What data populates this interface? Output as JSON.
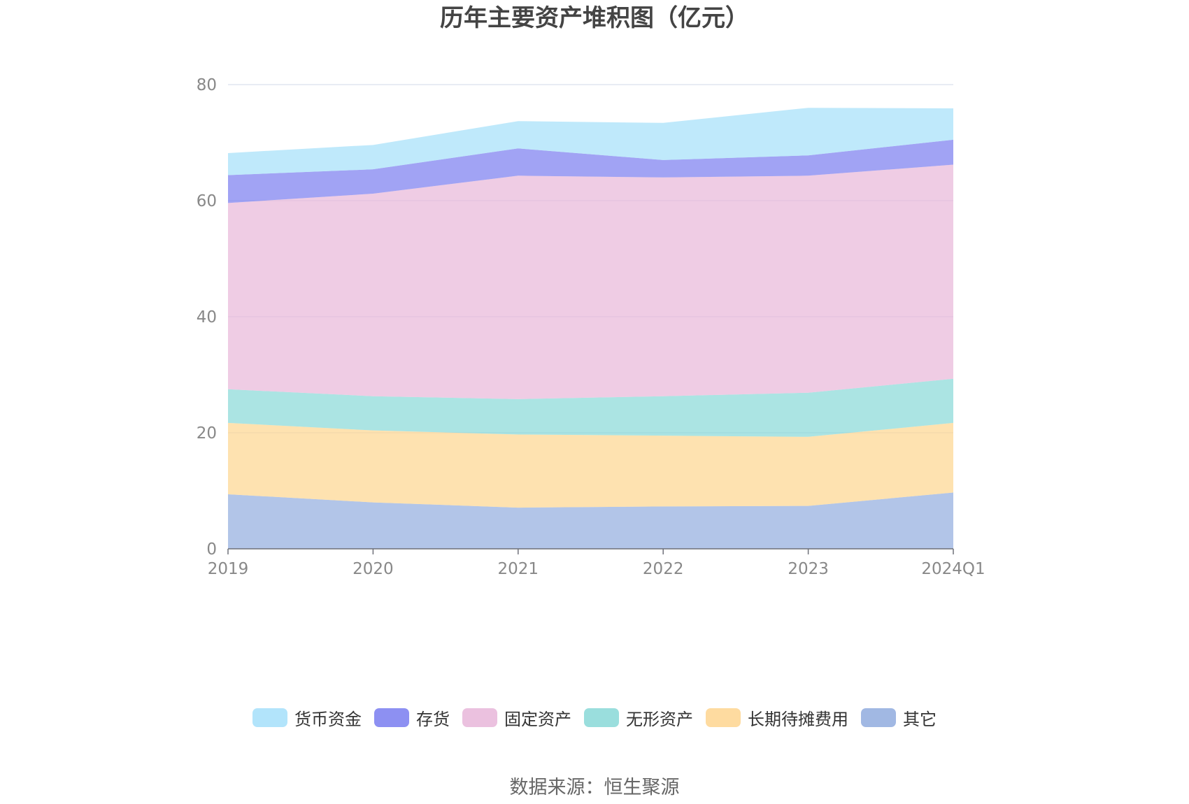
{
  "title": "历年主要资产堆积图（亿元）",
  "source": "数据来源：恒生聚源",
  "colors": {
    "axis": "#6e7079",
    "grid": "#e0e6f1",
    "tick_text": "#888888"
  },
  "chart_data": {
    "type": "area",
    "stacked": true,
    "title": "历年主要资产堆积图（亿元）",
    "xlabel": "",
    "ylabel": "",
    "categories": [
      "2019",
      "2020",
      "2021",
      "2022",
      "2023",
      "2024Q1"
    ],
    "ylim": [
      0,
      80
    ],
    "yticks": [
      0,
      20,
      40,
      60,
      80
    ],
    "grid": true,
    "legend_position": "bottom",
    "series": [
      {
        "name": "其它",
        "color": "#91acde",
        "values": [
          9.4,
          8.0,
          7.1,
          7.3,
          7.4,
          9.7
        ]
      },
      {
        "name": "长期待摊费用",
        "color": "#fed58f",
        "values": [
          12.3,
          12.4,
          12.6,
          12.2,
          11.9,
          12.0
        ]
      },
      {
        "name": "无形资产",
        "color": "#88d8d7",
        "values": [
          5.8,
          5.9,
          6.1,
          6.8,
          7.6,
          7.6
        ]
      },
      {
        "name": "固定资产",
        "color": "#e8b6d9",
        "values": [
          32.1,
          34.9,
          38.5,
          37.7,
          37.4,
          36.9
        ]
      },
      {
        "name": "存货",
        "color": "#797cf0",
        "values": [
          4.8,
          4.2,
          4.7,
          3.0,
          3.5,
          4.3
        ]
      },
      {
        "name": "货币资金",
        "color": "#a4dffa",
        "values": [
          3.8,
          4.2,
          4.7,
          6.4,
          8.2,
          5.4
        ]
      }
    ]
  }
}
